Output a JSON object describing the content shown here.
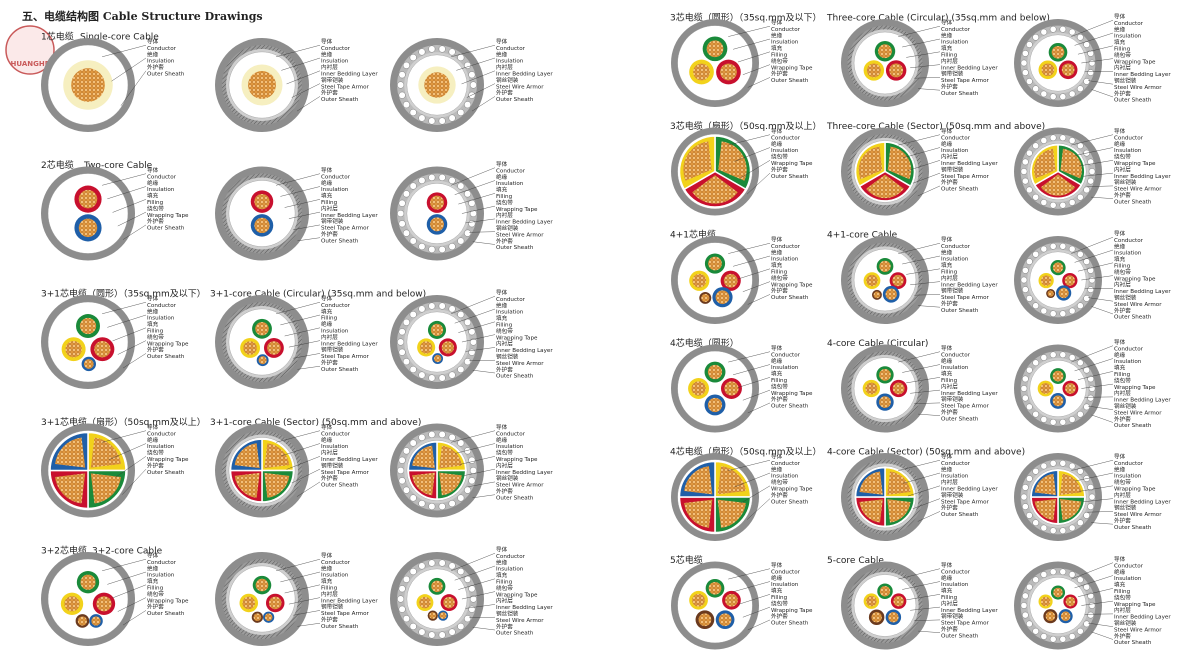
{
  "header": {
    "logo": "HUANGHE",
    "title": "五、电缆结构图  Cable Structure Drawings"
  },
  "sections": [
    {
      "title_cn": "1芯电缆",
      "title_en": "Single-core Cable",
      "drawings": [
        [
          "导体",
          "Conductor",
          "绝缘",
          "Insulation",
          "外护套",
          "Outer Sheath"
        ],
        [
          "导体",
          "Conductor",
          "绝缘",
          "Insulation",
          "内衬层",
          "Inner Bedding Layer",
          "钢带铠装",
          "Steel Tape Armor",
          "外护套",
          "Outer Sheath"
        ],
        [
          "导体",
          "Conductor",
          "绝缘",
          "Insulation",
          "内衬层",
          "Inner Bedding Layer",
          "钢丝铠装",
          "Steel Wire Armor",
          "外护套",
          "Outer Sheath"
        ]
      ]
    },
    {
      "title_cn": "2芯电缆",
      "title_en": "Two-core Cable",
      "drawings": [
        [
          "导体",
          "Conductor",
          "绝缘",
          "Insulation",
          "填充",
          "Filling",
          "绕包带",
          "Wrapping Tape",
          "外护套",
          "Outer Sheath"
        ],
        [
          "导体",
          "Conductor",
          "绝缘",
          "Insulation",
          "填充",
          "Filling",
          "内衬层",
          "Inner Bedding Layer",
          "钢带铠装",
          "Steel Tape Armor",
          "外护套",
          "Outer Sheath"
        ],
        [
          "导体",
          "Conductor",
          "绝缘",
          "Insulation",
          "填充",
          "Filling",
          "绕包带",
          "Wrapping Tape",
          "内衬层",
          "Inner Bedding Layer",
          "钢丝铠装",
          "Steel Wire Armor",
          "外护套",
          "Outer Sheath"
        ]
      ]
    },
    {
      "title_cn": "3+1芯电缆（圆形）（35sq.mm及以下）",
      "title_en": "3+1-core Cable (Circular) (35sq.mm and below)",
      "drawings": [
        [
          "导体",
          "Conductor",
          "绝缘",
          "Insulation",
          "填充",
          "Filling",
          "绕包带",
          "Wrapping Tape",
          "外护套",
          "Outer Sheath"
        ],
        [
          "导体",
          "Conductor",
          "填充",
          "Filling",
          "绝缘",
          "Insulation",
          "内衬层",
          "Inner Bedding Layer",
          "钢带铠装",
          "Steel Tape Armor",
          "外护套",
          "Outer Sheath"
        ],
        [
          "导体",
          "Conductor",
          "绝缘",
          "Insulation",
          "填充",
          "Filling",
          "绕包带",
          "Wrapping Tape",
          "内衬层",
          "Inner Bedding Layer",
          "钢丝铠装",
          "Steel Wire Armor",
          "外护套",
          "Outer Sheath"
        ]
      ]
    },
    {
      "title_cn": "3+1芯电缆（扇形）（50sq.mm及以上）",
      "title_en": "3+1-core Cable (Sector) (50sq.mm and above)",
      "drawings": [
        [
          "导体",
          "Conductor",
          "绝缘",
          "Insulation",
          "绕包带",
          "Wrapping Tape",
          "外护套",
          "Outer Sheath"
        ],
        [
          "导体",
          "Conductor",
          "绝缘",
          "Insulation",
          "内衬层",
          "Inner Bedding Layer",
          "钢带铠装",
          "Steel Tape Armor",
          "外护套",
          "Outer Sheath"
        ],
        [
          "导体",
          "Conductor",
          "绝缘",
          "Insulation",
          "绕包带",
          "Wrapping Tape",
          "内衬层",
          "Inner Bedding Layer",
          "钢丝铠装",
          "Steel Wire Armor",
          "外护套",
          "Outer Sheath"
        ]
      ]
    },
    {
      "title_cn": "3+2芯电缆",
      "title_en": "3+2-core Cable",
      "drawings": [
        [
          "导体",
          "Conductor",
          "绝缘",
          "Insulation",
          "填充",
          "Filling",
          "绕包带",
          "Wrapping Tape",
          "外护套",
          "Outer Sheath"
        ],
        [
          "导体",
          "Conductor",
          "绝缘",
          "Insulation",
          "填充",
          "Filling",
          "内衬层",
          "Inner Bedding Layer",
          "钢带铠装",
          "Steel Tape Armor",
          "外护套",
          "Outer Sheath"
        ],
        [
          "导体",
          "Conductor",
          "绝缘",
          "Insulation",
          "填充",
          "Filling",
          "绕包带",
          "Wrapping Tape",
          "内衬层",
          "Inner Bedding Layer",
          "钢丝铠装",
          "Steel Wire Armor",
          "外护套",
          "Outer Sheath"
        ]
      ]
    },
    {
      "title_cn": "3芯电缆（圆形）（35sq.mm及以下）",
      "title_en": "Three-core Cable (Circular) (35sq.mm and below)",
      "drawings": [
        [
          "导体",
          "Conductor",
          "绝缘",
          "Insulation",
          "填充",
          "Filling",
          "绕包带",
          "Wrapping Tape",
          "外护套",
          "Outer Sheath"
        ],
        [
          "导体",
          "Conductor",
          "绝缘",
          "Insulation",
          "填充",
          "Filling",
          "内衬层",
          "Inner Bedding Layer",
          "钢带铠装",
          "Steel Tape Armor",
          "外护套",
          "Outer Sheath"
        ],
        [
          "导体",
          "Conductor",
          "绝缘",
          "Insulation",
          "填充",
          "Filling",
          "绕包带",
          "Wrapping Tape",
          "内衬层",
          "Inner Bedding Layer",
          "钢丝铠装",
          "Steel Wire Armor",
          "外护套",
          "Outer Sheath"
        ]
      ]
    },
    {
      "title_cn": "3芯电缆（扇形）（50sq.mm及以上）",
      "title_en": "Three-core Cable (Sector) (50sq.mm and above)",
      "drawings": [
        [
          "导体",
          "Conductor",
          "绝缘",
          "Insulation",
          "绕包带",
          "Wrapping Tape",
          "外护套",
          "Outer Sheath"
        ],
        [
          "导体",
          "Conductor",
          "绝缘",
          "Insulation",
          "内衬层",
          "Inner Bedding Layer",
          "钢带铠装",
          "Steel Tape Armor",
          "外护套",
          "Outer Sheath"
        ],
        [
          "导体",
          "Conductor",
          "绝缘",
          "Insulation",
          "绕包带",
          "Wrapping Tape",
          "内衬层",
          "Inner Bedding Layer",
          "钢丝铠装",
          "Steel Wire Armor",
          "外护套",
          "Outer Sheath"
        ]
      ]
    },
    {
      "title_cn": "4+1芯电缆",
      "title_en": "4+1-core Cable",
      "drawings": [
        [
          "导体",
          "Conductor",
          "绝缘",
          "Insulation",
          "填充",
          "Filling",
          "绕包带",
          "Wrapping Tape",
          "外护套",
          "Outer Sheath"
        ],
        [
          "导体",
          "Conductor",
          "绝缘",
          "Insulation",
          "填充",
          "Filling",
          "内衬层",
          "Inner Bedding Layer",
          "钢带铠装",
          "Steel Tape Armor",
          "外护套",
          "Outer Sheath"
        ],
        [
          "导体",
          "Conductor",
          "绝缘",
          "Insulation",
          "填充",
          "Filling",
          "绕包带",
          "Wrapping Tape",
          "内衬层",
          "Inner Bedding Layer",
          "钢丝铠装",
          "Steel Wire Armor",
          "外护套",
          "Outer Sheath"
        ]
      ]
    },
    {
      "title_cn": "4芯电缆（圆形）",
      "title_en": "4-core Cable (Circular)",
      "drawings": [
        [
          "导体",
          "Conductor",
          "绝缘",
          "Insulation",
          "填充",
          "Filling",
          "绕包带",
          "Wrapping Tape",
          "外护套",
          "Outer Sheath"
        ],
        [
          "导体",
          "Conductor",
          "绝缘",
          "Insulation",
          "填充",
          "Filling",
          "内衬层",
          "Inner Bedding Layer",
          "钢带铠装",
          "Steel Tape Armor",
          "外护套",
          "Outer Sheath"
        ],
        [
          "导体",
          "Conductor",
          "绝缘",
          "Insulation",
          "填充",
          "Filling",
          "绕包带",
          "Wrapping Tape",
          "内衬层",
          "Inner Bedding Layer",
          "钢丝铠装",
          "Steel Wire Armor",
          "外护套",
          "Outer Sheath"
        ]
      ]
    },
    {
      "title_cn": "4芯电缆（扇形）（50sq.mm及以上）",
      "title_en": "4-core Cable (Sector) (50sq.mm and above)",
      "drawings": [
        [
          "导体",
          "Conductor",
          "绝缘",
          "Insulation",
          "绕包带",
          "Wrapping Tape",
          "外护套",
          "Outer Sheath"
        ],
        [
          "导体",
          "Conductor",
          "绝缘",
          "Insulation",
          "内衬层",
          "Inner Bedding Layer",
          "钢带铠装",
          "Steel Tape Armor",
          "外护套",
          "Outer Sheath"
        ],
        [
          "导体",
          "Conductor",
          "绝缘",
          "Insulation",
          "绕包带",
          "Wrapping Tape",
          "内衬层",
          "Inner Bedding Layer",
          "钢丝铠装",
          "Steel Wire Armor",
          "外护套",
          "Outer Sheath"
        ]
      ]
    },
    {
      "title_cn": "5芯电缆",
      "title_en": "5-core Cable",
      "drawings": [
        [
          "导体",
          "Conductor",
          "绝缘",
          "Insulation",
          "填充",
          "Filling",
          "绕包带",
          "Wrapping Tape",
          "外护套",
          "Outer Sheath"
        ],
        [
          "导体",
          "Conductor",
          "绝缘",
          "Insulation",
          "填充",
          "Filling",
          "内衬层",
          "Inner Bedding Layer",
          "钢带铠装",
          "Steel Tape Armor",
          "外护套",
          "Outer Sheath"
        ],
        [
          "导体",
          "Conductor",
          "绝缘",
          "Insulation",
          "填充",
          "Filling",
          "绕包带",
          "Wrapping Tape",
          "内衬层",
          "Inner Bedding Layer",
          "钢丝铠装",
          "Steel Wire Armor",
          "外护套",
          "Outer Sheath"
        ]
      ]
    }
  ]
}
